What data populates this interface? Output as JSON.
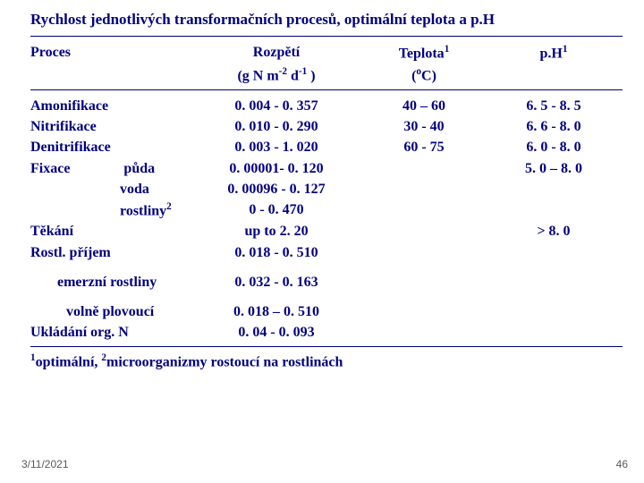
{
  "title": "Rychlost jednotlivých transformačních procesů, optimální teplota a p.H",
  "headers": {
    "c1": "Proces",
    "c2": "Rozpětí",
    "c3_html": "Teplota<span class='sup'>1</span>",
    "c4_html": "p.H<span class='sup'>1</span>",
    "unit_c2_html": "(g N m<span class='sup'>-2</span> d<span class='sup'>-1</span> )",
    "unit_c3_html": "(<span class='sup'>o</span>C)"
  },
  "rows": [
    {
      "c1": "Amonifikace",
      "c2": "0. 004 - 0. 357",
      "c3": "40 – 60",
      "c4": "6. 5 - 8. 5"
    },
    {
      "c1": "Nitrifikace",
      "c2": "0. 010 - 0. 290",
      "c3": "30 - 40",
      "c4": "6. 6 - 8. 0"
    },
    {
      "c1": "Denitrifikace",
      "c2": "0. 003 - 1. 020",
      "c3": "60 - 75",
      "c4": "6. 0 - 8. 0"
    },
    {
      "c1_html": "Fixace<span style='display:inline-block;width:60px'></span>půda",
      "c2": "0. 00001- 0. 120",
      "c3": "",
      "c4": "5. 0 – 8. 0"
    },
    {
      "c1": "voda",
      "c1cls": "indent1",
      "c2": "0. 00096 - 0. 127",
      "c3": "",
      "c4": ""
    },
    {
      "c1_html": "rostliny<span class='sup'>2</span>",
      "c1cls": "indent1",
      "c2": "0 - 0. 470",
      "c3": "",
      "c4": ""
    },
    {
      "c1": "Těkání",
      "c2": "up to 2. 20",
      "c3": "",
      "c4": "> 8. 0"
    },
    {
      "c1": "Rostl. příjem",
      "c2": "0. 018 - 0. 510",
      "c3": "",
      "c4": ""
    }
  ],
  "rows2": [
    {
      "c1": "emerzní rostliny",
      "c1cls": "indent2",
      "c2": "0. 032 - 0. 163"
    }
  ],
  "rows3": [
    {
      "c1": "volně plovoucí",
      "c1cls": "indent3",
      "c2": "0. 018 – 0. 510"
    },
    {
      "c1": "Ukládání org. N",
      "c2": "0. 04 - 0. 093"
    }
  ],
  "footnote_html": "<span class='sup'>1</span>optimální, <span class='sup'>2</span>microorganizmy rostoucí na rostlinách",
  "footer": {
    "date": "3/11/2021",
    "page": "46"
  },
  "colors": {
    "primary": "#000080",
    "bg": "#ffffff",
    "footer": "#5a5a5a"
  }
}
